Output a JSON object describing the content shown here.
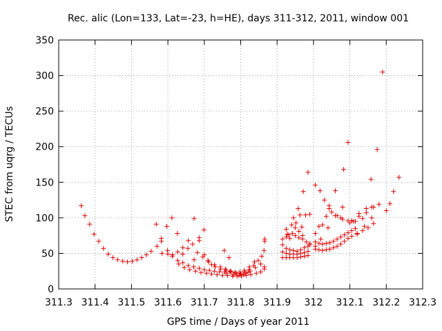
{
  "chart_data": {
    "type": "scatter",
    "title": "Rec. alic (Lon=133, Lat=-23, h=HE), days 311-312, 2011, window 001",
    "xlabel": "GPS time / Days of year 2011",
    "ylabel": "STEC from uqrg / TECUs",
    "xlim": [
      311.3,
      312.3
    ],
    "ylim": [
      0,
      350
    ],
    "xticks": [
      311.3,
      311.4,
      311.5,
      311.6,
      311.7,
      311.8,
      311.9,
      312.0,
      312.1,
      312.2,
      312.3
    ],
    "xtick_labels": [
      "311.3",
      "311.4",
      "311.5",
      "311.6",
      "311.7",
      "311.8",
      "311.9",
      "312",
      "312.1",
      "312.2",
      "312.3"
    ],
    "yticks": [
      0,
      50,
      100,
      150,
      200,
      250,
      300,
      350
    ],
    "ytick_labels": [
      "0",
      "50",
      "100",
      "150",
      "200",
      "250",
      "300",
      "350"
    ],
    "grid": true,
    "marker": "+",
    "color": "#dd0000",
    "points": [
      [
        311.362,
        117
      ],
      [
        311.372,
        103
      ],
      [
        311.385,
        91
      ],
      [
        311.397,
        77
      ],
      [
        311.41,
        67
      ],
      [
        311.423,
        57
      ],
      [
        311.436,
        49
      ],
      [
        311.449,
        44
      ],
      [
        311.462,
        41
      ],
      [
        311.476,
        39
      ],
      [
        311.489,
        38
      ],
      [
        311.502,
        39
      ],
      [
        311.515,
        41
      ],
      [
        311.528,
        44
      ],
      [
        311.541,
        48
      ],
      [
        311.554,
        53
      ],
      [
        311.568,
        91
      ],
      [
        311.582,
        71
      ],
      [
        311.582,
        67
      ],
      [
        311.597,
        88
      ],
      [
        311.611,
        100
      ],
      [
        311.626,
        78
      ],
      [
        311.641,
        58
      ],
      [
        311.656,
        68
      ],
      [
        311.672,
        99
      ],
      [
        311.686,
        72
      ],
      [
        311.686,
        68
      ],
      [
        311.699,
        83
      ],
      [
        311.71,
        40
      ],
      [
        311.755,
        54
      ],
      [
        311.768,
        44
      ],
      [
        311.57,
        60
      ],
      [
        311.584,
        50
      ],
      [
        311.599,
        54
      ],
      [
        311.613,
        48
      ],
      [
        311.627,
        52
      ],
      [
        311.641,
        49
      ],
      [
        311.655,
        57
      ],
      [
        311.668,
        63
      ],
      [
        311.672,
        41
      ],
      [
        311.681,
        51
      ],
      [
        311.696,
        45
      ],
      [
        311.7,
        48
      ],
      [
        311.712,
        38
      ],
      [
        311.728,
        34
      ],
      [
        311.744,
        31
      ],
      [
        311.758,
        28
      ],
      [
        311.772,
        25
      ],
      [
        311.785,
        23
      ],
      [
        311.798,
        22
      ],
      [
        311.81,
        24
      ],
      [
        311.823,
        27
      ],
      [
        311.836,
        33
      ],
      [
        311.848,
        40
      ],
      [
        311.858,
        46
      ],
      [
        311.864,
        54
      ],
      [
        311.866,
        70
      ],
      [
        311.866,
        67
      ],
      [
        311.6,
        49
      ],
      [
        311.612,
        46
      ],
      [
        311.627,
        40
      ],
      [
        311.641,
        37
      ],
      [
        311.656,
        33
      ],
      [
        311.671,
        31
      ],
      [
        311.686,
        29
      ],
      [
        311.7,
        27
      ],
      [
        311.714,
        26
      ],
      [
        311.728,
        25
      ],
      [
        311.742,
        24
      ],
      [
        311.756,
        24
      ],
      [
        311.77,
        24
      ],
      [
        311.784,
        23
      ],
      [
        311.798,
        24
      ],
      [
        311.81,
        26
      ],
      [
        311.824,
        31
      ],
      [
        311.838,
        38
      ],
      [
        311.63,
        35
      ],
      [
        311.645,
        30
      ],
      [
        311.66,
        27
      ],
      [
        311.676,
        25
      ],
      [
        311.691,
        23
      ],
      [
        311.706,
        22
      ],
      [
        311.72,
        21
      ],
      [
        311.735,
        20
      ],
      [
        311.75,
        19
      ],
      [
        311.764,
        19
      ],
      [
        311.778,
        18
      ],
      [
        311.79,
        18
      ],
      [
        311.802,
        18
      ],
      [
        311.815,
        19
      ],
      [
        311.828,
        20
      ],
      [
        311.843,
        22
      ],
      [
        311.855,
        24
      ],
      [
        311.865,
        28
      ],
      [
        311.72,
        34
      ],
      [
        311.73,
        31
      ],
      [
        311.745,
        28
      ],
      [
        311.76,
        26
      ],
      [
        311.774,
        24
      ],
      [
        311.788,
        22
      ],
      [
        311.8,
        21
      ],
      [
        311.814,
        22
      ],
      [
        311.826,
        25
      ],
      [
        311.84,
        30
      ],
      [
        311.855,
        35
      ],
      [
        311.865,
        31
      ],
      [
        311.76,
        22
      ],
      [
        311.78,
        20
      ],
      [
        311.795,
        19
      ],
      [
        311.808,
        20
      ],
      [
        311.82,
        23
      ],
      [
        311.915,
        70
      ],
      [
        311.925,
        84
      ],
      [
        311.928,
        77
      ],
      [
        311.935,
        71
      ],
      [
        311.945,
        100
      ],
      [
        311.952,
        93
      ],
      [
        311.958,
        113
      ],
      [
        311.963,
        104
      ],
      [
        311.968,
        87
      ],
      [
        311.972,
        137
      ],
      [
        311.978,
        104
      ],
      [
        311.985,
        164
      ],
      [
        311.99,
        105
      ],
      [
        311.915,
        62
      ],
      [
        311.925,
        57
      ],
      [
        311.935,
        55
      ],
      [
        311.945,
        54
      ],
      [
        311.955,
        53
      ],
      [
        311.965,
        55
      ],
      [
        311.975,
        58
      ],
      [
        311.985,
        60
      ],
      [
        311.99,
        62
      ],
      [
        311.915,
        52
      ],
      [
        311.925,
        50
      ],
      [
        311.935,
        49
      ],
      [
        311.945,
        49
      ],
      [
        311.955,
        49
      ],
      [
        311.965,
        50
      ],
      [
        311.975,
        51
      ],
      [
        311.985,
        53
      ],
      [
        311.915,
        44
      ],
      [
        311.925,
        44
      ],
      [
        311.935,
        44
      ],
      [
        311.945,
        44
      ],
      [
        311.955,
        44
      ],
      [
        311.965,
        45
      ],
      [
        311.975,
        46
      ],
      [
        311.985,
        47
      ],
      [
        311.925,
        73
      ],
      [
        311.932,
        76
      ],
      [
        311.942,
        78
      ],
      [
        311.95,
        75
      ],
      [
        311.96,
        72
      ],
      [
        311.97,
        70
      ],
      [
        311.98,
        66
      ],
      [
        311.99,
        64
      ],
      [
        311.94,
        90
      ],
      [
        311.95,
        86
      ],
      [
        311.96,
        81
      ],
      [
        311.97,
        75
      ],
      [
        312.005,
        146
      ],
      [
        312.018,
        138
      ],
      [
        312.03,
        125
      ],
      [
        312.043,
        117
      ],
      [
        312.043,
        113
      ],
      [
        312.06,
        138
      ],
      [
        312.075,
        100
      ],
      [
        312.083,
        168
      ],
      [
        312.095,
        206
      ],
      [
        312.105,
        96
      ],
      [
        312.115,
        95
      ],
      [
        312.125,
        106
      ],
      [
        312.135,
        99
      ],
      [
        312.145,
        113
      ],
      [
        312.158,
        154
      ],
      [
        312.165,
        115
      ],
      [
        312.175,
        196
      ],
      [
        312.18,
        119
      ],
      [
        312.19,
        305
      ],
      [
        312.2,
        110
      ],
      [
        312.21,
        120
      ],
      [
        312.22,
        137
      ],
      [
        312.235,
        157
      ],
      [
        312.005,
        78
      ],
      [
        312.015,
        88
      ],
      [
        312.025,
        90
      ],
      [
        312.035,
        102
      ],
      [
        312.05,
        108
      ],
      [
        312.065,
        103
      ],
      [
        312.08,
        98
      ],
      [
        312.095,
        96
      ],
      [
        312.11,
        95
      ],
      [
        312.125,
        102
      ],
      [
        312.145,
        107
      ],
      [
        312.16,
        100
      ],
      [
        312.005,
        66
      ],
      [
        312.015,
        64
      ],
      [
        312.025,
        63
      ],
      [
        312.035,
        64
      ],
      [
        312.045,
        65
      ],
      [
        312.055,
        67
      ],
      [
        312.065,
        70
      ],
      [
        312.075,
        73
      ],
      [
        312.085,
        76
      ],
      [
        312.095,
        79
      ],
      [
        312.105,
        82
      ],
      [
        312.115,
        85
      ],
      [
        312.005,
        56
      ],
      [
        312.015,
        55
      ],
      [
        312.025,
        54
      ],
      [
        312.035,
        55
      ],
      [
        312.045,
        56
      ],
      [
        312.055,
        58
      ],
      [
        312.065,
        60
      ],
      [
        312.075,
        63
      ],
      [
        312.085,
        67
      ],
      [
        312.095,
        71
      ],
      [
        312.105,
        74
      ],
      [
        312.12,
        78
      ],
      [
        312.135,
        82
      ],
      [
        312.15,
        86
      ],
      [
        312.165,
        92
      ],
      [
        312.005,
        60
      ],
      [
        312.02,
        70
      ],
      [
        312.04,
        86
      ],
      [
        312.06,
        103
      ],
      [
        312.08,
        115
      ],
      [
        312.1,
        93
      ],
      [
        312.12,
        77
      ],
      [
        312.14,
        88
      ],
      [
        312.16,
        115
      ]
    ]
  }
}
